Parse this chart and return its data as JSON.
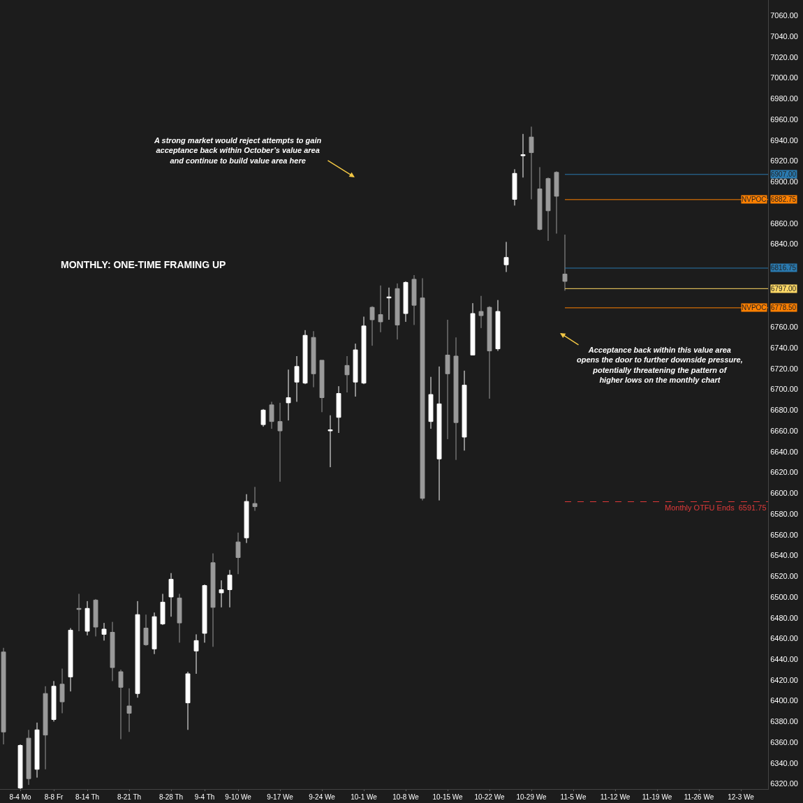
{
  "chart_data": {
    "type": "candlestick",
    "categories": [
      null,
      null,
      "8-4 Mo",
      null,
      null,
      null,
      "8-8 Fr",
      null,
      null,
      null,
      "8-14 Th",
      null,
      null,
      null,
      null,
      "8-21 Th",
      null,
      null,
      null,
      null,
      "8-28 Th",
      null,
      null,
      null,
      "9-4 Th",
      null,
      null,
      null,
      "9-10 We",
      null,
      null,
      null,
      null,
      "9-17 We",
      null,
      null,
      null,
      null,
      "9-24 We",
      null,
      null,
      null,
      null,
      "10-1 We",
      null,
      null,
      null,
      null,
      "10-8 We",
      null,
      null,
      null,
      null,
      "10-15 We",
      null,
      null,
      null,
      null,
      "10-22 We",
      null,
      null,
      null,
      null,
      "10-29 We",
      null,
      null,
      null,
      null,
      "11-5 We",
      null,
      null,
      null,
      null,
      "11-12 We",
      null,
      null,
      null,
      null,
      "11-19 We",
      null,
      null,
      null,
      null,
      "11-26 We",
      null,
      null,
      null,
      null,
      "12-3 We",
      null,
      null,
      null
    ],
    "ohlc": [
      [
        6447,
        6451,
        6358,
        6370
      ],
      null,
      [
        6316,
        6358,
        6315,
        6357
      ],
      [
        6364,
        6372,
        6319,
        6325
      ],
      [
        6334,
        6379,
        6326,
        6372
      ],
      [
        6407,
        6414,
        6334,
        6367
      ],
      [
        6382,
        6419,
        6380,
        6414
      ],
      [
        6416,
        6431,
        6388,
        6399
      ],
      [
        6423,
        6470,
        6409,
        6468
      ],
      [
        6489,
        6503,
        6467,
        6488
      ],
      [
        6467,
        6496,
        6463,
        6489
      ],
      [
        6497,
        6498,
        6462,
        6471
      ],
      [
        6464,
        6475,
        6458,
        6469
      ],
      [
        6466,
        6476,
        6419,
        6432
      ],
      [
        6428,
        6430,
        6363,
        6413
      ],
      [
        6395,
        6412,
        6370,
        6388
      ],
      [
        6407,
        6496,
        6403,
        6483
      ],
      [
        6470,
        6483,
        6453,
        6454
      ],
      [
        6450,
        6485,
        6445,
        6481
      ],
      [
        6474,
        6503,
        6473,
        6495
      ],
      [
        6500,
        6523,
        6481,
        6517
      ],
      [
        6499,
        6503,
        6456,
        6475
      ],
      [
        6398,
        6428,
        6372,
        6426
      ],
      [
        6448,
        6464,
        6426,
        6458
      ],
      [
        6465,
        6512,
        6456,
        6511
      ],
      [
        6533,
        6542,
        6452,
        6490
      ],
      [
        6504,
        6516,
        6490,
        6507
      ],
      [
        6507,
        6526,
        6490,
        6521
      ],
      [
        6553,
        6562,
        6522,
        6538
      ],
      [
        6557,
        6599,
        6552,
        6592
      ],
      [
        6590,
        6606,
        6583,
        6587
      ],
      [
        6666,
        6681,
        6664,
        6680
      ],
      [
        6685,
        6688,
        6662,
        6669
      ],
      [
        6669,
        6687,
        6611,
        6660
      ],
      [
        6687,
        6719,
        6670,
        6692
      ],
      [
        6707,
        6732,
        6688,
        6722
      ],
      [
        6706,
        6757,
        6705,
        6752
      ],
      [
        6750,
        6756,
        6702,
        6715
      ],
      [
        6728,
        6728,
        6678,
        6692
      ],
      [
        6660,
        6675,
        6625,
        6661
      ],
      [
        6673,
        6703,
        6658,
        6696
      ],
      [
        6723,
        6732,
        6697,
        6714
      ],
      [
        6707,
        6744,
        6693,
        6738
      ],
      [
        6706,
        6770,
        6705,
        6761
      ],
      [
        6779,
        6780,
        6742,
        6767
      ],
      [
        6772,
        6800,
        6755,
        6765
      ],
      [
        6788,
        6798,
        6767,
        6789
      ],
      [
        6797,
        6802,
        6748,
        6762
      ],
      [
        6773,
        6804,
        6765,
        6803
      ],
      [
        6806,
        6810,
        6762,
        6781
      ],
      [
        6788,
        6807,
        6593,
        6595
      ],
      [
        6669,
        6712,
        6662,
        6695
      ],
      [
        6633,
        6722,
        6593,
        6686
      ],
      [
        6733,
        6767,
        6652,
        6715
      ],
      [
        6732,
        6750,
        6632,
        6668
      ],
      [
        6654,
        6718,
        6641,
        6704
      ],
      [
        6733,
        6783,
        6733,
        6773
      ],
      [
        6775,
        6790,
        6759,
        6771
      ],
      [
        6779,
        6780,
        6691,
        6737
      ],
      [
        6739,
        6786,
        6737,
        6775
      ],
      [
        6820,
        6842,
        6813,
        6827
      ],
      [
        6883,
        6912,
        6877,
        6908
      ],
      [
        6925,
        6946,
        6904,
        6926
      ],
      [
        6943,
        6953,
        6883,
        6928
      ],
      [
        6893,
        6914,
        6853,
        6854
      ],
      [
        6903,
        6904,
        6843,
        6872
      ],
      [
        6909,
        6910,
        6850,
        6886
      ],
      [
        6811,
        6849,
        6795,
        6804
      ],
      null,
      null,
      null,
      null,
      null,
      null,
      null,
      null,
      null,
      null,
      null,
      null,
      null,
      null,
      null,
      null,
      null,
      null,
      null,
      null,
      null,
      null,
      null,
      null
    ],
    "ylim": [
      6315,
      7075
    ],
    "yticks": [
      {
        "value": 6320,
        "label": "6320.00"
      },
      {
        "value": 6340,
        "label": "6340.00"
      },
      {
        "value": 6360,
        "label": "6360.00"
      },
      {
        "value": 6380,
        "label": "6380.00"
      },
      {
        "value": 6400,
        "label": "6400.00"
      },
      {
        "value": 6420,
        "label": "6420.00"
      },
      {
        "value": 6440,
        "label": "6440.00"
      },
      {
        "value": 6460,
        "label": "6460.00"
      },
      {
        "value": 6480,
        "label": "6480.00"
      },
      {
        "value": 6500,
        "label": "6500.00"
      },
      {
        "value": 6520,
        "label": "6520.00"
      },
      {
        "value": 6540,
        "label": "6540.00"
      },
      {
        "value": 6560,
        "label": "6560.00"
      },
      {
        "value": 6580,
        "label": "6580.00"
      },
      {
        "value": 6600,
        "label": "6600.00"
      },
      {
        "value": 6620,
        "label": "6620.00"
      },
      {
        "value": 6640,
        "label": "6640.00"
      },
      {
        "value": 6660,
        "label": "6660.00"
      },
      {
        "value": 6680,
        "label": "6680.00"
      },
      {
        "value": 6700,
        "label": "6700.00"
      },
      {
        "value": 6720,
        "label": "6720.00"
      },
      {
        "value": 6740,
        "label": "6740.00"
      },
      {
        "value": 6760,
        "label": "6760.00"
      },
      {
        "value": 6840,
        "label": "6840.00"
      },
      {
        "value": 6860,
        "label": "6860.00"
      },
      {
        "value": 6900,
        "label": "6900.00"
      },
      {
        "value": 6920,
        "label": "6920.00"
      },
      {
        "value": 6940,
        "label": "6940.00"
      },
      {
        "value": 6960,
        "label": "6960.00"
      },
      {
        "value": 6980,
        "label": "6980.00"
      },
      {
        "value": 7000,
        "label": "7000.00"
      },
      {
        "value": 7020,
        "label": "7020.00"
      },
      {
        "value": 7040,
        "label": "7040.00"
      },
      {
        "value": 7060,
        "label": "7060.00"
      }
    ],
    "ref_lines": [
      {
        "axis": "y",
        "value": 6907,
        "label": "6907.00",
        "color": "#2a7ab0"
      },
      {
        "axis": "y",
        "value": 6882.75,
        "label": "6882.75",
        "color": "#ff8000"
      },
      {
        "axis": "y",
        "value": 6816.75,
        "label": "6816.75",
        "color": "#2a7ab0"
      },
      {
        "axis": "y",
        "value": 6797,
        "label": "6797.00",
        "color": "#ffd966"
      },
      {
        "axis": "y",
        "value": 6778.5,
        "label": "6778.50",
        "color": "#ff8000"
      },
      {
        "axis": "y",
        "value": 6591.75,
        "label": "Monthly OTFU Ends  6591.75",
        "color": "#e03a3a",
        "line_style": "dashed"
      }
    ],
    "annotations": [
      {
        "text": "NVPOC",
        "y": 6882.75
      },
      {
        "text": "NVPOC",
        "y": 6778.5
      },
      "MONTHLY: ONE-TIME FRAMING UP",
      "A strong market would reject attempts to gain\nacceptance back within October’s value area\nand continue to build value area here",
      "Acceptance back within this value area\nopens the door to further downside pressure,\npotentially threatening the pattern of\nhigher lows on the monthly chart"
    ]
  }
}
